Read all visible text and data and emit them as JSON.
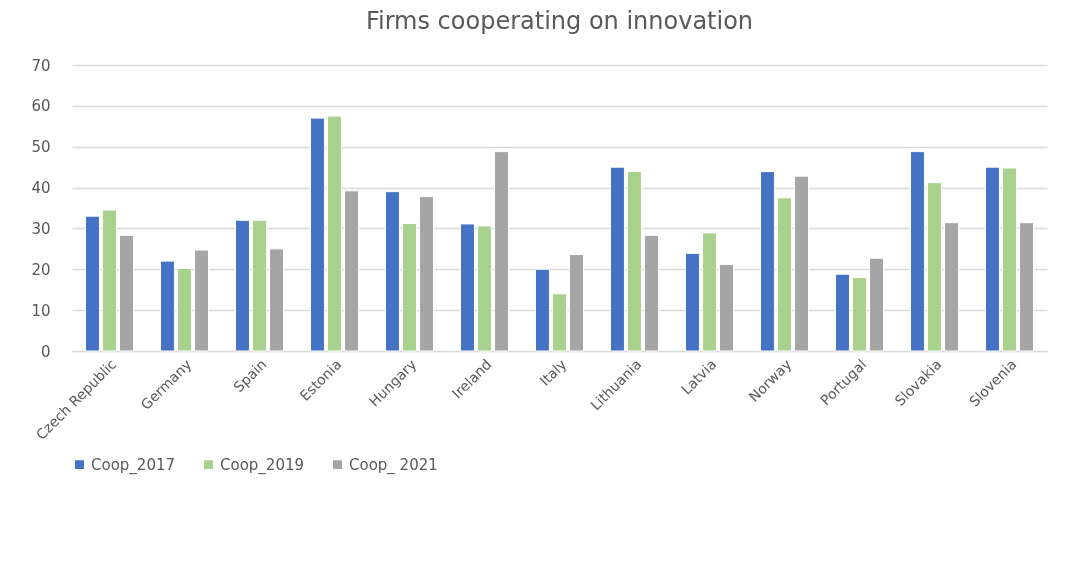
{
  "chart_data": {
    "type": "bar",
    "title": "Firms cooperating on innovation",
    "categories": [
      "Czech Republic",
      "Germany",
      "Spain",
      "Estonia",
      "Hungary",
      "Ireland",
      "Italy",
      "Lithuania",
      "Latvia",
      "Norway",
      "Portugal",
      "Slovakia",
      "Slovenia"
    ],
    "series": [
      {
        "name": "Coop_2017",
        "color": "#4472c4",
        "values": [
          33,
          22,
          32,
          57,
          39,
          31.1,
          20,
          45,
          23.9,
          43.9,
          18.8,
          48.8,
          45
        ]
      },
      {
        "name": "Coop_2019",
        "color": "#a9d18e",
        "values": [
          34.5,
          20.2,
          32,
          57.5,
          31.2,
          30.6,
          14,
          43.9,
          28.9,
          37.5,
          18,
          41.2,
          44.8
        ]
      },
      {
        "name": "Coop_ 2021",
        "color": "#a5a5a5",
        "values": [
          28.3,
          24.7,
          25,
          39.2,
          37.8,
          48.8,
          23.6,
          28.3,
          21.2,
          42.8,
          22.7,
          31.4,
          31.4
        ]
      }
    ],
    "ylim": [
      0,
      70
    ],
    "yticks": [
      0,
      10,
      20,
      30,
      40,
      50,
      60,
      70
    ],
    "grid": "y",
    "legend": "bottom"
  }
}
